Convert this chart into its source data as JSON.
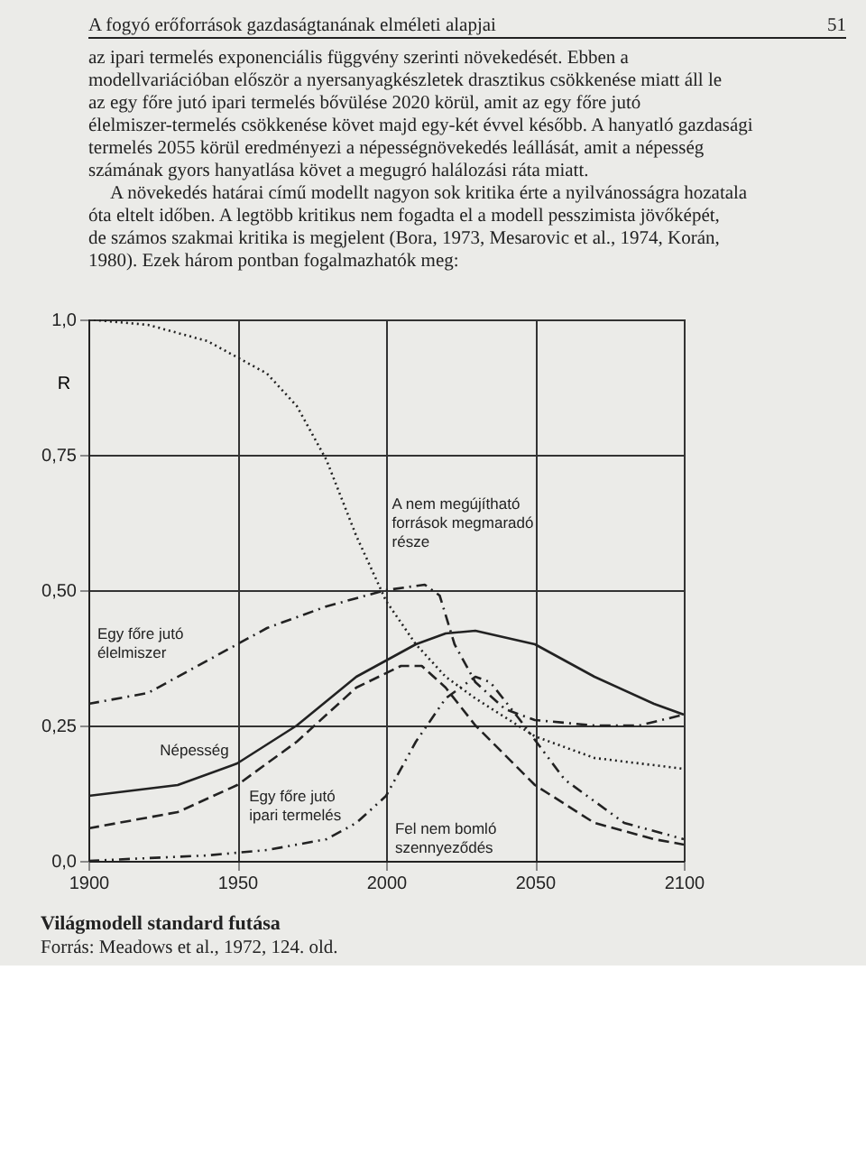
{
  "chart_data": {
    "type": "line",
    "title": "Világmodell standard futása",
    "ylabel": "R",
    "annotations": [
      "A fogyó erőforrások gazdaságtanának elméleti alapjai",
      "51",
      "az ipari termelés exponenciális függvény szerinti növekedését. Ebben a modellvariációban először a nyersanyagkészletek drasztikus csökkenése miatt áll le az egy főre jutó ipari termelés bővülése 2020 körül, amit az egy főre jutó élelmiszer-termelés csökkenése követ majd egy-két évvel később. A hanyatló gazdasági termelés 2055 körül eredményezi a népességnövekedés leállását, amit a népesség számának gyors hanyatlása követ a megugró halálozási ráta miatt.",
      "A növekedés határai című modellt nagyon sok kritika érte a nyilvánosságra hozatala óta eltelt időben. A legtöbb kritikus nem fogadta el a modell pesszimista jövőképét, de számos szakmai kritika is megjelent (Bora, 1973, Mesarovic et al., 1974, Korán, 1980). Ezek három pontban fogalmazhatók meg:",
      "Forrás: Meadows et al., 1972, 124. old."
    ],
    "xlim": [
      1900,
      2100
    ],
    "xticks": [
      1900,
      1950,
      2000,
      2050,
      2100
    ],
    "ylim": [
      0,
      1
    ],
    "yticks": [
      {
        "value": 0,
        "label": "0,0"
      },
      {
        "value": 0.25,
        "label": "0,25"
      },
      {
        "value": 0.5,
        "label": "0,50"
      },
      {
        "value": 0.75,
        "label": "0,75"
      },
      {
        "value": 1,
        "label": "1,0"
      }
    ],
    "grid": true,
    "legend": false,
    "series": [
      {
        "name": "A nem megújítható források megmaradó része",
        "color": "#222222",
        "line_style": "dotted",
        "x": [
          1900,
          1920,
          1940,
          1960,
          1970,
          1980,
          1990,
          2000,
          2010,
          2020,
          2030,
          2050,
          2070,
          2100
        ],
        "values": [
          1.0,
          0.99,
          0.96,
          0.9,
          0.84,
          0.74,
          0.6,
          0.48,
          0.4,
          0.34,
          0.3,
          0.23,
          0.19,
          0.17
        ]
      },
      {
        "name": "Egy főre jutó élelmiszer",
        "color": "#222222",
        "line_style": "dashed",
        "x": [
          1900,
          1920,
          1940,
          1960,
          1980,
          2000,
          2013,
          2018,
          2023,
          2030,
          2040,
          2050,
          2070,
          2085,
          2100
        ],
        "values": [
          0.29,
          0.31,
          0.37,
          0.43,
          0.47,
          0.5,
          0.51,
          0.49,
          0.4,
          0.33,
          0.28,
          0.26,
          0.25,
          0.25,
          0.27
        ]
      },
      {
        "name": "Népesség",
        "color": "#222222",
        "line_style": "solid",
        "x": [
          1900,
          1930,
          1950,
          1970,
          1990,
          2010,
          2020,
          2030,
          2050,
          2070,
          2090,
          2100
        ],
        "values": [
          0.12,
          0.14,
          0.18,
          0.25,
          0.34,
          0.4,
          0.42,
          0.425,
          0.4,
          0.34,
          0.29,
          0.27
        ]
      },
      {
        "name": "Egy főre jutó ipari termelés",
        "color": "#222222",
        "line_style": "dashed",
        "x": [
          1900,
          1930,
          1950,
          1970,
          1990,
          2005,
          2012,
          2020,
          2030,
          2050,
          2070,
          2090,
          2100
        ],
        "values": [
          0.06,
          0.09,
          0.14,
          0.22,
          0.32,
          0.36,
          0.36,
          0.32,
          0.25,
          0.14,
          0.07,
          0.04,
          0.03
        ]
      },
      {
        "name": "Fel nem bomló szennyeződés",
        "color": "#222222",
        "line_style": "dashed",
        "x": [
          1900,
          1940,
          1960,
          1980,
          1990,
          2000,
          2010,
          2020,
          2030,
          2035,
          2045,
          2060,
          2080,
          2100
        ],
        "values": [
          0.0,
          0.01,
          0.02,
          0.04,
          0.07,
          0.12,
          0.22,
          0.3,
          0.34,
          0.33,
          0.26,
          0.15,
          0.07,
          0.04
        ]
      }
    ]
  }
}
